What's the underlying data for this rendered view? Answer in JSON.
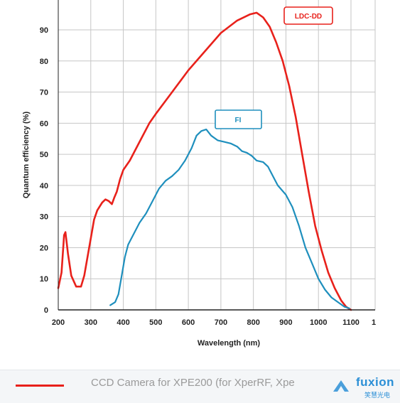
{
  "chart_data": {
    "type": "line",
    "title": "",
    "xlabel": "Wavelength (nm)",
    "ylabel": "Quantum efficiency (%)",
    "xlim": [
      200,
      1150
    ],
    "ylim": [
      0,
      100
    ],
    "x_ticks": [
      "200",
      "300",
      "400",
      "500",
      "600",
      "700",
      "800",
      "900",
      "1000",
      "1100",
      "1"
    ],
    "y_ticks": [
      "0",
      "10",
      "20",
      "30",
      "40",
      "50",
      "60",
      "70",
      "80",
      "90"
    ],
    "grid": true,
    "series": [
      {
        "name": "LDC-DD",
        "color": "#e8211b",
        "points": [
          [
            200,
            7
          ],
          [
            210,
            12
          ],
          [
            218,
            24
          ],
          [
            222,
            25
          ],
          [
            230,
            18
          ],
          [
            240,
            11
          ],
          [
            255,
            7.5
          ],
          [
            270,
            7.5
          ],
          [
            280,
            11
          ],
          [
            295,
            20
          ],
          [
            310,
            29
          ],
          [
            320,
            32
          ],
          [
            335,
            34.5
          ],
          [
            345,
            35.5
          ],
          [
            355,
            35
          ],
          [
            365,
            34
          ],
          [
            372,
            36
          ],
          [
            380,
            38
          ],
          [
            390,
            42
          ],
          [
            400,
            45
          ],
          [
            420,
            48
          ],
          [
            450,
            54
          ],
          [
            480,
            60
          ],
          [
            500,
            63
          ],
          [
            550,
            70
          ],
          [
            600,
            77
          ],
          [
            650,
            83
          ],
          [
            700,
            89
          ],
          [
            750,
            93
          ],
          [
            790,
            95
          ],
          [
            810,
            95.5
          ],
          [
            830,
            94
          ],
          [
            850,
            91
          ],
          [
            870,
            86
          ],
          [
            890,
            80
          ],
          [
            910,
            72
          ],
          [
            930,
            62
          ],
          [
            950,
            50
          ],
          [
            970,
            38
          ],
          [
            990,
            27
          ],
          [
            1010,
            19
          ],
          [
            1030,
            12
          ],
          [
            1050,
            7
          ],
          [
            1070,
            3
          ],
          [
            1085,
            1
          ],
          [
            1100,
            0
          ]
        ]
      },
      {
        "name": "FI",
        "color": "#1e8fbd",
        "points": [
          [
            360,
            1.5
          ],
          [
            375,
            2.5
          ],
          [
            385,
            5
          ],
          [
            395,
            11
          ],
          [
            405,
            17
          ],
          [
            415,
            21
          ],
          [
            430,
            24
          ],
          [
            450,
            28
          ],
          [
            470,
            31
          ],
          [
            490,
            35
          ],
          [
            510,
            39
          ],
          [
            530,
            41.5
          ],
          [
            550,
            43
          ],
          [
            570,
            45
          ],
          [
            590,
            48
          ],
          [
            610,
            52
          ],
          [
            625,
            56
          ],
          [
            640,
            57.5
          ],
          [
            655,
            58
          ],
          [
            670,
            56
          ],
          [
            690,
            54.5
          ],
          [
            710,
            54
          ],
          [
            730,
            53.5
          ],
          [
            750,
            52.5
          ],
          [
            765,
            51
          ],
          [
            780,
            50.5
          ],
          [
            795,
            49.5
          ],
          [
            810,
            48
          ],
          [
            830,
            47.5
          ],
          [
            845,
            46
          ],
          [
            860,
            43
          ],
          [
            875,
            40
          ],
          [
            900,
            37
          ],
          [
            920,
            33
          ],
          [
            940,
            27
          ],
          [
            960,
            20
          ],
          [
            980,
            15
          ],
          [
            1000,
            10
          ],
          [
            1020,
            6.5
          ],
          [
            1040,
            4
          ],
          [
            1060,
            2.5
          ],
          [
            1080,
            1
          ],
          [
            1095,
            0.5
          ]
        ]
      }
    ],
    "annotations": [
      "LDC-DD",
      "FI"
    ]
  },
  "legend": {
    "caption": "CCD Camera for XPE200 (for XperRF, Xpe",
    "line_color": "#e8211b"
  },
  "brand": {
    "name": "fuxion",
    "sub": "笑慧光电"
  },
  "colors": {
    "grid": "#c6c6c6",
    "axis": "#222222",
    "footer_bg": "#f4f6f8"
  }
}
